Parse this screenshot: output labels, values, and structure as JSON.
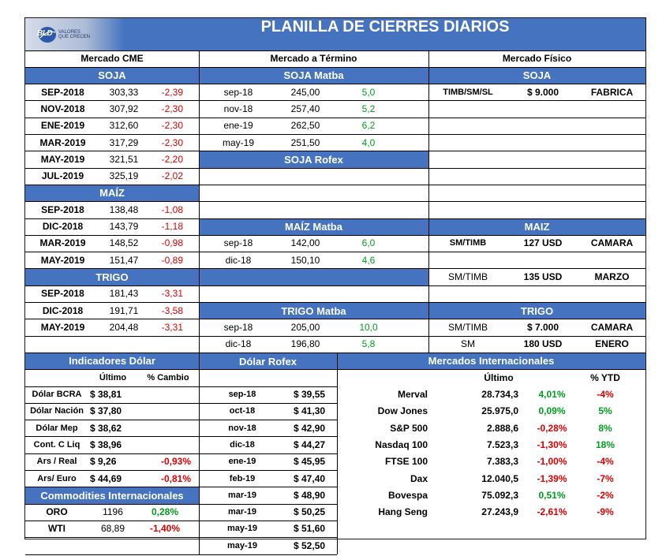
{
  "title": "PLANILLA DE CIERRES DIARIOS",
  "logo": {
    "text": "BLD",
    "tagline1": "VALORES",
    "tagline2": "QUE CRECEN"
  },
  "sections": {
    "cme": "Mercado CME",
    "termino": "Mercado a Término",
    "fisico": "Mercado Físico"
  },
  "cme": {
    "soja_header": "SOJA",
    "soja": [
      {
        "m": "SEP-2018",
        "p": "303,33",
        "v": "-2,39"
      },
      {
        "m": "NOV-2018",
        "p": "307,92",
        "v": "-2,30"
      },
      {
        "m": "ENE-2019",
        "p": "312,60",
        "v": "-2,30"
      },
      {
        "m": "MAR-2019",
        "p": "317,29",
        "v": "-2,30"
      },
      {
        "m": "MAY-2019",
        "p": "321,51",
        "v": "-2,20"
      },
      {
        "m": "JUL-2019",
        "p": "325,19",
        "v": "-2,02"
      }
    ],
    "maiz_header": "MAÍZ",
    "maiz": [
      {
        "m": "SEP-2018",
        "p": "138,48",
        "v": "-1,08"
      },
      {
        "m": "DIC-2018",
        "p": "143,79",
        "v": "-1,18"
      },
      {
        "m": "MAR-2019",
        "p": "148,52",
        "v": "-0,98"
      },
      {
        "m": "MAY-2019",
        "p": "151,47",
        "v": "-0,89"
      }
    ],
    "trigo_header": "TRIGO",
    "trigo": [
      {
        "m": "SEP-2018",
        "p": "181,43",
        "v": "-3,31"
      },
      {
        "m": "DIC-2018",
        "p": "191,71",
        "v": "-3,58"
      },
      {
        "m": "MAY-2019",
        "p": "204,48",
        "v": "-3,31"
      }
    ]
  },
  "termino": {
    "soja_header": "SOJA Matba",
    "soja": [
      {
        "m": "sep-18",
        "p": "245,00",
        "v": "5,0"
      },
      {
        "m": "nov-18",
        "p": "257,40",
        "v": "5,2"
      },
      {
        "m": "ene-19",
        "p": "262,50",
        "v": "6,2"
      },
      {
        "m": "may-19",
        "p": "251,50",
        "v": "4,0"
      }
    ],
    "rofex_header": "SOJA Rofex",
    "maiz_header": "MAÍZ Matba",
    "maiz": [
      {
        "m": "sep-18",
        "p": "142,00",
        "v": "6,0"
      },
      {
        "m": "dic-18",
        "p": "150,10",
        "v": "4,6"
      }
    ],
    "trigo_header": "TRIGO Matba",
    "trigo": [
      {
        "m": "sep-18",
        "p": "205,00",
        "v": "10,0"
      },
      {
        "m": "dic-18",
        "p": "196,80",
        "v": "5,8"
      }
    ]
  },
  "fisico": {
    "soja_header": "SOJA",
    "soja": [
      {
        "a": "TIMB/SM/SL",
        "b": "$ 9.000",
        "c": "FABRICA"
      }
    ],
    "maiz_header": "MAIZ",
    "maiz": [
      {
        "a": "SM/TIMB",
        "b": "127 USD",
        "c": "CAMARA"
      },
      {
        "a": "SM/TIMB",
        "b": "135 USD",
        "c": "MARZO"
      }
    ],
    "trigo_header": "TRIGO",
    "trigo": [
      {
        "a": "SM/TIMB",
        "b": "$ 7.000",
        "c": "CAMARA"
      },
      {
        "a": "SM",
        "b": "180 USD",
        "c": "ENERO"
      }
    ]
  },
  "dolar": {
    "header": "Indicadores Dólar",
    "col_ultimo": "Último",
    "col_cambio": "% Cambio",
    "rows": [
      {
        "n": "Dólar BCRA",
        "v": "$ 38,81",
        "c": ""
      },
      {
        "n": "Dólar Nación",
        "v": "$ 37,80",
        "c": ""
      },
      {
        "n": "Dólar Mep",
        "v": "$ 38,62",
        "c": ""
      },
      {
        "n": "Cont. C Liq",
        "v": "$ 38,96",
        "c": ""
      },
      {
        "n": "Ars / Real",
        "v": "$ 9,26",
        "c": "-0,93%"
      },
      {
        "n": "Ars/ Euro",
        "v": "$ 44,69",
        "c": "-0,81%"
      }
    ]
  },
  "commodities": {
    "header": "Commodities Internacionales",
    "rows": [
      {
        "n": "ORO",
        "v": "1196",
        "c": "0,28%",
        "dir": "pos"
      },
      {
        "n": "WTI",
        "v": "68,89",
        "c": "-1,40%",
        "dir": "neg"
      }
    ]
  },
  "rofex": {
    "header": "Dólar Rofex",
    "rows": [
      {
        "m": "sep-18",
        "v": "$ 39,55"
      },
      {
        "m": "oct-18",
        "v": "$ 41,30"
      },
      {
        "m": "nov-18",
        "v": "$ 42,90"
      },
      {
        "m": "dic-18",
        "v": "$ 44,27"
      },
      {
        "m": "ene-19",
        "v": "$ 45,95"
      },
      {
        "m": "feb-19",
        "v": "$ 47,40"
      },
      {
        "m": "mar-19",
        "v": "$ 48,90"
      },
      {
        "m": "mar-19",
        "v": "$ 50,25"
      },
      {
        "m": "may-19",
        "v": "$ 51,60"
      },
      {
        "m": "may-19",
        "v": "$ 52,50"
      }
    ]
  },
  "internacionales": {
    "header": "Mercados Internacionales",
    "col_ultimo": "Último",
    "col_ytd": "% YTD",
    "rows": [
      {
        "n": "Merval",
        "v": "28.734,3",
        "d": "4,01%",
        "dd": "pos",
        "y": "-4%",
        "yd": "neg"
      },
      {
        "n": "Dow Jones",
        "v": "25.975,0",
        "d": "0,09%",
        "dd": "pos",
        "y": "5%",
        "yd": "pos"
      },
      {
        "n": "S&P 500",
        "v": "2.888,6",
        "d": "-0,28%",
        "dd": "neg",
        "y": "8%",
        "yd": "pos"
      },
      {
        "n": "Nasdaq 100",
        "v": "7.523,3",
        "d": "-1,30%",
        "dd": "neg",
        "y": "18%",
        "yd": "pos"
      },
      {
        "n": "FTSE 100",
        "v": "7.383,3",
        "d": "-1,00%",
        "dd": "neg",
        "y": "-4%",
        "yd": "neg"
      },
      {
        "n": "Dax",
        "v": "12.040,5",
        "d": "-1,39%",
        "dd": "neg",
        "y": "-7%",
        "yd": "neg"
      },
      {
        "n": "Bovespa",
        "v": "75.092,3",
        "d": "0,51%",
        "dd": "pos",
        "y": "-2%",
        "yd": "neg"
      },
      {
        "n": "Hang Seng",
        "v": "27.243,9",
        "d": "-2,61%",
        "dd": "neg",
        "y": "-9%",
        "yd": "neg"
      }
    ]
  },
  "colors": {
    "header_blue": "#4573c0",
    "negative": "#e00000",
    "positive": "#00a01e"
  }
}
